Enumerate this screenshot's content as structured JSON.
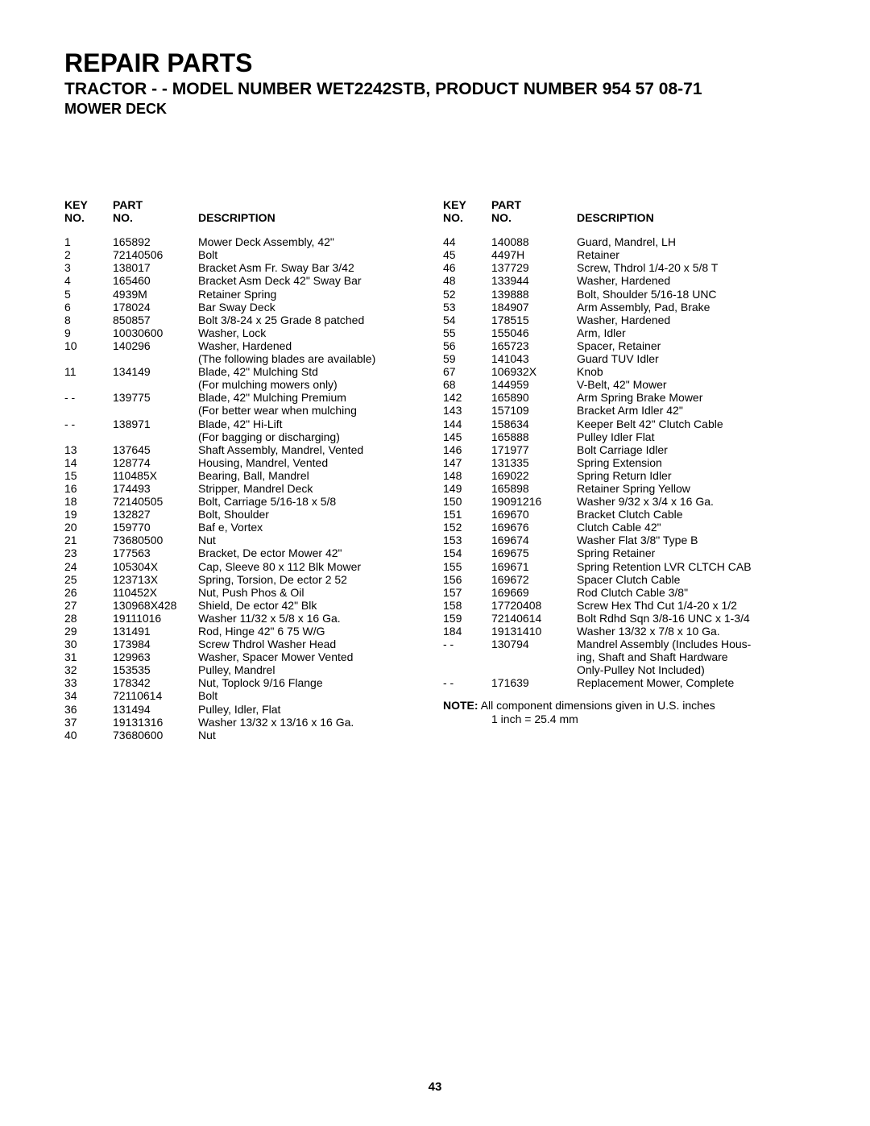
{
  "header": {
    "title": "REPAIR PARTS",
    "subtitle": "TRACTOR - - MODEL NUMBER WET2242STB, PRODUCT NUMBER 954 57 08-71",
    "section": "MOWER DECK"
  },
  "tableHeaders": {
    "keyLine1": "KEY",
    "keyLine2": "NO.",
    "partLine1": "PART",
    "partLine2": "NO.",
    "desc": "DESCRIPTION"
  },
  "leftRows": [
    {
      "key": "1",
      "part": "165892",
      "desc": "Mower Deck Assembly, 42\""
    },
    {
      "key": "2",
      "part": "72140506",
      "desc": "Bolt"
    },
    {
      "key": "3",
      "part": "138017",
      "desc": "Bracket Asm Fr. Sway Bar 3/42"
    },
    {
      "key": "4",
      "part": "165460",
      "desc": "Bracket Asm Deck 42\" Sway Bar"
    },
    {
      "key": "5",
      "part": "4939M",
      "desc": "Retainer Spring"
    },
    {
      "key": "6",
      "part": "178024",
      "desc": "Bar Sway Deck"
    },
    {
      "key": "8",
      "part": "850857",
      "desc": "Bolt  3/8-24 x 25 Grade 8 patched"
    },
    {
      "key": "9",
      "part": "10030600",
      "desc": "Washer, Lock"
    },
    {
      "key": "10",
      "part": "140296",
      "desc": "Washer, Hardened"
    },
    {
      "key": "",
      "part": "",
      "desc": "(The following blades are available)"
    },
    {
      "key": "11",
      "part": "134149",
      "desc": "Blade, 42\" Mulching Std"
    },
    {
      "key": "",
      "part": "",
      "desc": "(For mulching mowers only)"
    },
    {
      "key": "- -",
      "part": "139775",
      "desc": "Blade, 42\" Mulching Premium"
    },
    {
      "key": "",
      "part": "",
      "desc": "(For better wear when mulching"
    },
    {
      "key": "- -",
      "part": "138971",
      "desc": "Blade, 42\" Hi-Lift"
    },
    {
      "key": "",
      "part": "",
      "desc": "(For bagging or discharging)"
    },
    {
      "key": "13",
      "part": "137645",
      "desc": "Shaft Assembly, Mandrel, Vented"
    },
    {
      "key": "14",
      "part": "128774",
      "desc": "Housing, Mandrel, Vented"
    },
    {
      "key": "15",
      "part": "110485X",
      "desc": "Bearing, Ball, Mandrel"
    },
    {
      "key": "16",
      "part": "174493",
      "desc": "Stripper, Mandrel Deck"
    },
    {
      "key": "18",
      "part": "72140505",
      "desc": "Bolt, Carriage  5/16-18 x 5/8"
    },
    {
      "key": "19",
      "part": "132827",
      "desc": "Bolt, Shoulder"
    },
    {
      "key": "20",
      "part": "159770",
      "desc": "Baf e, Vortex"
    },
    {
      "key": "21",
      "part": "73680500",
      "desc": "Nut"
    },
    {
      "key": "23",
      "part": "177563",
      "desc": "Bracket, De ector Mower 42\""
    },
    {
      "key": "24",
      "part": "105304X",
      "desc": "Cap, Sleeve  80 x 112 Blk Mower"
    },
    {
      "key": "25",
      "part": "123713X",
      "desc": "Spring, Torsion, De ector 2 52"
    },
    {
      "key": "26",
      "part": "110452X",
      "desc": "Nut, Push Phos & Oil"
    },
    {
      "key": "27",
      "part": "130968X428",
      "desc": "Shield, De ector 42\" Blk"
    },
    {
      "key": "28",
      "part": "19111016",
      "desc": "Washer  11/32 x 5/8 x 16 Ga."
    },
    {
      "key": "29",
      "part": "131491",
      "desc": "Rod, Hinge 42\" 6 75 W/G"
    },
    {
      "key": "30",
      "part": "173984",
      "desc": "Screw Thdrol Washer Head"
    },
    {
      "key": "31",
      "part": "129963",
      "desc": "Washer, Spacer Mower Vented"
    },
    {
      "key": "32",
      "part": "153535",
      "desc": "Pulley, Mandrel"
    },
    {
      "key": "33",
      "part": "178342",
      "desc": "Nut, Toplock  9/16 Flange"
    },
    {
      "key": "34",
      "part": "72110614",
      "desc": "Bolt"
    },
    {
      "key": "36",
      "part": "131494",
      "desc": "Pulley, Idler, Flat"
    },
    {
      "key": "37",
      "part": "19131316",
      "desc": "Washer  13/32 x 13/16 x 16 Ga."
    },
    {
      "key": "40",
      "part": "73680600",
      "desc": "Nut"
    }
  ],
  "rightRows": [
    {
      "key": "44",
      "part": "140088",
      "desc": "Guard, Mandrel, LH"
    },
    {
      "key": "45",
      "part": "4497H",
      "desc": "Retainer"
    },
    {
      "key": "46",
      "part": "137729",
      "desc": "Screw,  Thdrol 1/4-20 x 5/8 T"
    },
    {
      "key": "48",
      "part": "133944",
      "desc": "Washer, Hardened"
    },
    {
      "key": "52",
      "part": "139888",
      "desc": "Bolt, Shoulder  5/16-18 UNC"
    },
    {
      "key": "53",
      "part": "184907",
      "desc": "Arm Assembly, Pad, Brake"
    },
    {
      "key": "54",
      "part": "178515",
      "desc": "Washer, Hardened"
    },
    {
      "key": "55",
      "part": "155046",
      "desc": "Arm, Idler"
    },
    {
      "key": "56",
      "part": "165723",
      "desc": "Spacer, Retainer"
    },
    {
      "key": "59",
      "part": "141043",
      "desc": "Guard TUV Idler"
    },
    {
      "key": "67",
      "part": "106932X",
      "desc": "Knob"
    },
    {
      "key": "68",
      "part": "144959",
      "desc": "V-Belt, 42\" Mower"
    },
    {
      "key": "142",
      "part": "165890",
      "desc": "Arm Spring Brake Mower"
    },
    {
      "key": "143",
      "part": "157109",
      "desc": "Bracket Arm Idler 42\""
    },
    {
      "key": "144",
      "part": "158634",
      "desc": "Keeper Belt 42\" Clutch Cable"
    },
    {
      "key": "145",
      "part": "165888",
      "desc": "Pulley Idler Flat"
    },
    {
      "key": "146",
      "part": "171977",
      "desc": "Bolt Carriage Idler"
    },
    {
      "key": "147",
      "part": "131335",
      "desc": "Spring Extension"
    },
    {
      "key": "148",
      "part": "169022",
      "desc": "Spring Return Idler"
    },
    {
      "key": "149",
      "part": "165898",
      "desc": "Retainer Spring Yellow"
    },
    {
      "key": "150",
      "part": "19091216",
      "desc": "Washer 9/32 x 3/4 x 16 Ga."
    },
    {
      "key": "151",
      "part": "169670",
      "desc": "Bracket Clutch Cable"
    },
    {
      "key": "152",
      "part": "169676",
      "desc": "Clutch Cable 42\""
    },
    {
      "key": "153",
      "part": "169674",
      "desc": "Washer Flat 3/8\" Type B"
    },
    {
      "key": "154",
      "part": "169675",
      "desc": "Spring Retainer"
    },
    {
      "key": "155",
      "part": "169671",
      "desc": "Spring Retention LVR CLTCH CAB"
    },
    {
      "key": "156",
      "part": "169672",
      "desc": "Spacer Clutch Cable"
    },
    {
      "key": "157",
      "part": "169669",
      "desc": "Rod Clutch Cable 3/8\""
    },
    {
      "key": "158",
      "part": "17720408",
      "desc": "Screw Hex Thd Cut 1/4-20 x 1/2"
    },
    {
      "key": "159",
      "part": "72140614",
      "desc": "Bolt Rdhd Sqn 3/8-16 UNC x 1-3/4"
    },
    {
      "key": "184",
      "part": "19131410",
      "desc": "Washer 13/32 x 7/8 x 10 Ga."
    },
    {
      "key": "- -",
      "part": "130794",
      "desc": "Mandrel Assembly (Includes Hous-"
    },
    {
      "key": "",
      "part": "",
      "desc": "ing, Shaft and Shaft Hardware"
    },
    {
      "key": "",
      "part": "",
      "desc": "Only-Pulley Not Included)"
    },
    {
      "key": "- -",
      "part": "171639",
      "desc": "Replacement Mower, Complete"
    }
  ],
  "note": {
    "label": "NOTE:",
    "text1": "All component dimensions given in U.S. inches",
    "text2": "1 inch = 25.4 mm"
  },
  "pageNumber": "43"
}
